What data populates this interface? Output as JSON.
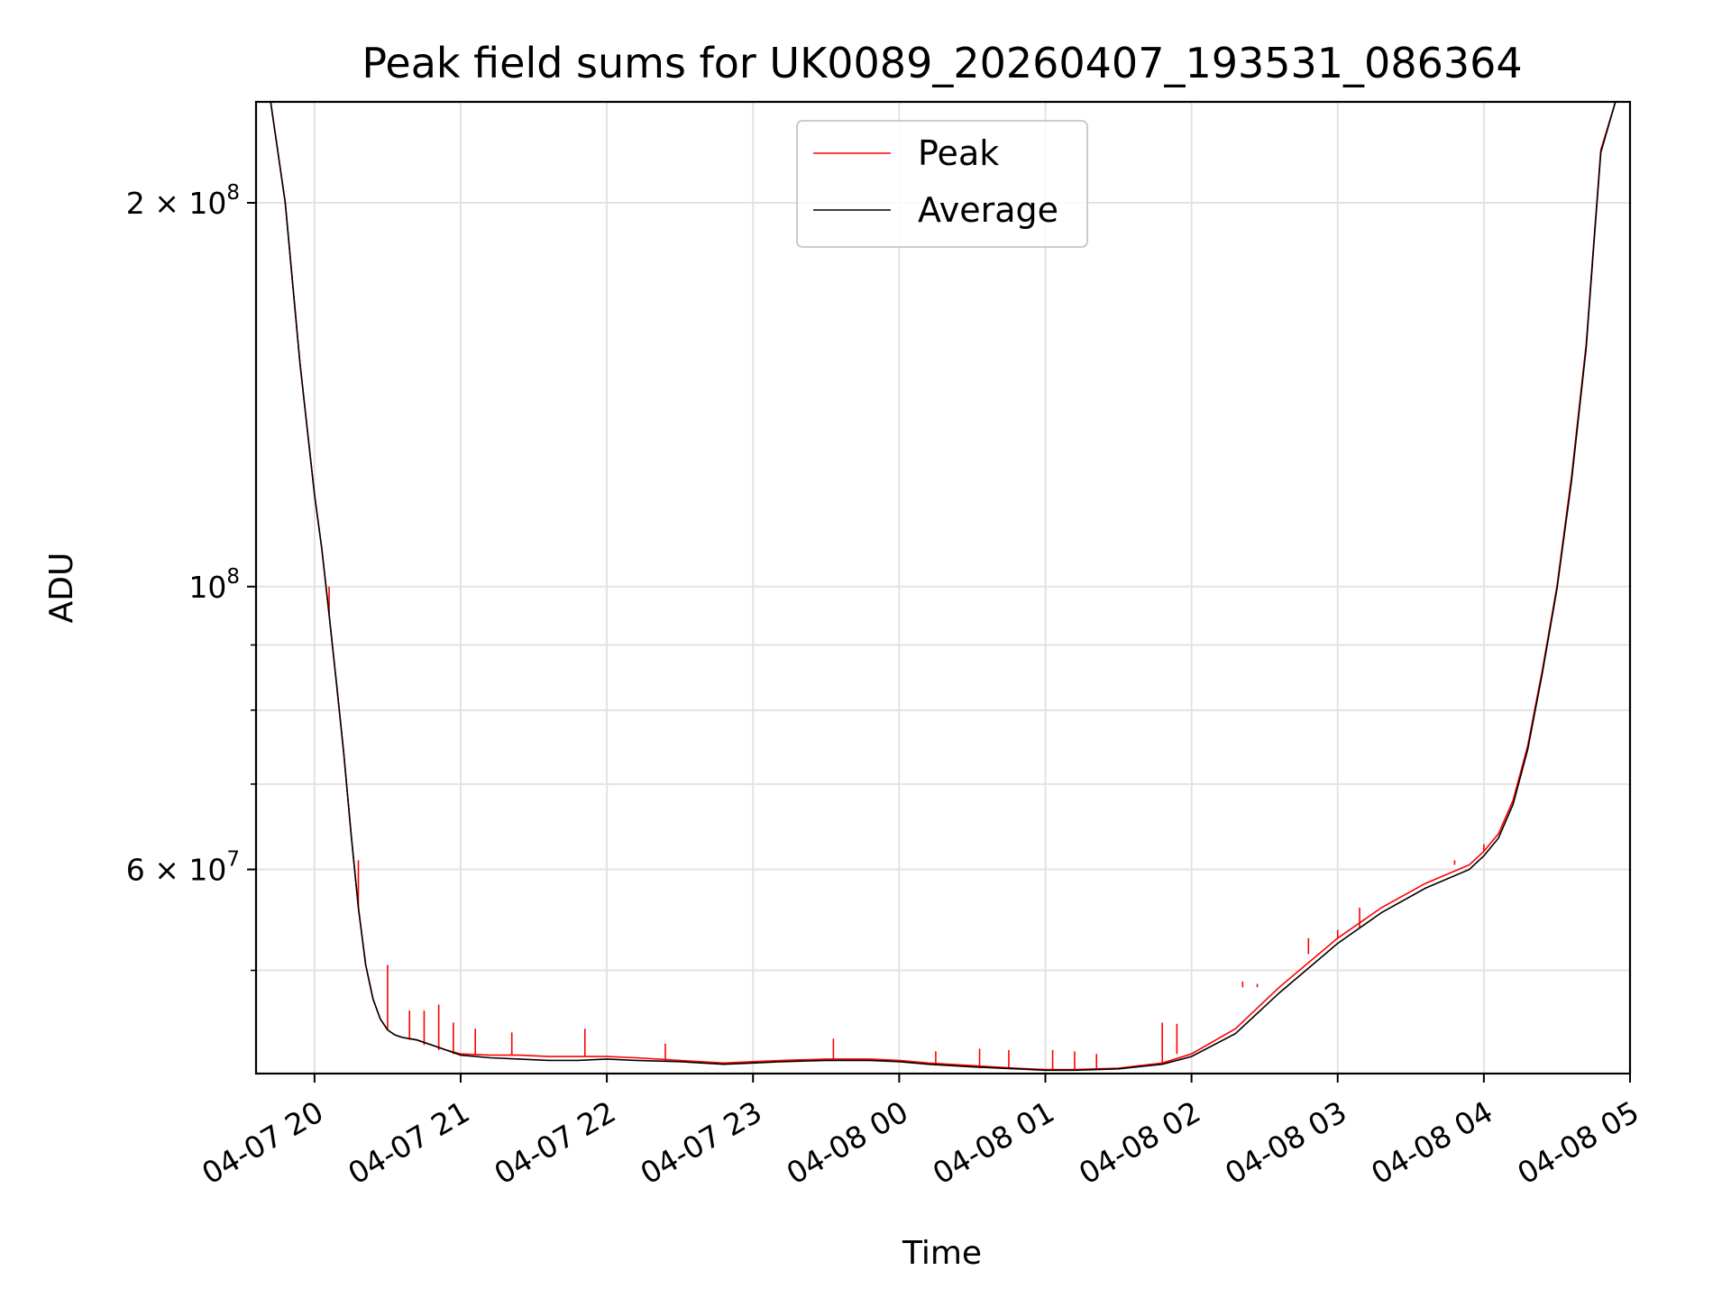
{
  "chart_data": {
    "type": "line",
    "title": "Peak field sums for UK0089_20260407_193531_086364",
    "xlabel": "Time",
    "ylabel": "ADU",
    "yscale": "log",
    "xlim_hours": [
      -0.4,
      9.0
    ],
    "ylim": [
      41500000,
      240000000
    ],
    "grid": true,
    "legend_position": "upper center",
    "x_ticks": [
      {
        "hour": 0,
        "label": "04-07 20"
      },
      {
        "hour": 1,
        "label": "04-07 21"
      },
      {
        "hour": 2,
        "label": "04-07 22"
      },
      {
        "hour": 3,
        "label": "04-07 23"
      },
      {
        "hour": 4,
        "label": "04-08 00"
      },
      {
        "hour": 5,
        "label": "04-08 01"
      },
      {
        "hour": 6,
        "label": "04-08 02"
      },
      {
        "hour": 7,
        "label": "04-08 03"
      },
      {
        "hour": 8,
        "label": "04-08 04"
      },
      {
        "hour": 9,
        "label": "04-08 05"
      }
    ],
    "y_major_ticks": [
      {
        "value": 200000000,
        "base": "2 × 10",
        "exp": "8"
      },
      {
        "value": 100000000,
        "base": "10",
        "exp": "8"
      },
      {
        "value": 60000000,
        "base": "6 × 10",
        "exp": "7"
      }
    ],
    "y_minor_ticks": [
      50000000,
      70000000,
      80000000,
      90000000
    ],
    "series": [
      {
        "name": "Peak",
        "color": "#ff0000",
        "x_hours": [
          -0.4,
          -0.3,
          -0.2,
          -0.1,
          0.0,
          0.05,
          0.1,
          0.15,
          0.2,
          0.25,
          0.3,
          0.35,
          0.4,
          0.45,
          0.5,
          0.55,
          0.6,
          0.7,
          0.8,
          0.9,
          1.0,
          1.2,
          1.4,
          1.6,
          1.8,
          2.0,
          2.2,
          2.5,
          2.8,
          3.0,
          3.2,
          3.5,
          3.8,
          4.0,
          4.2,
          4.5,
          4.8,
          5.0,
          5.2,
          5.5,
          5.8,
          6.0,
          6.3,
          6.6,
          7.0,
          7.3,
          7.6,
          7.9,
          8.0,
          8.1,
          8.2,
          8.3,
          8.4,
          8.5,
          8.6,
          8.7,
          8.75,
          8.8,
          8.9,
          9.0
        ],
        "values": [
          240000000,
          240000000,
          200000000,
          150000000,
          118000000,
          107000000,
          95000000,
          84000000,
          74000000,
          64000000,
          56000000,
          50500000,
          47500000,
          45800000,
          44900000,
          44500000,
          44300000,
          44100000,
          43700000,
          43300000,
          43000000,
          42900000,
          42900000,
          42800000,
          42800000,
          42800000,
          42700000,
          42500000,
          42300000,
          42400000,
          42500000,
          42600000,
          42600000,
          42500000,
          42300000,
          42100000,
          41900000,
          41800000,
          41800000,
          41900000,
          42300000,
          43000000,
          45000000,
          48500000,
          53000000,
          56000000,
          58500000,
          60500000,
          62000000,
          64000000,
          68000000,
          75000000,
          86000000,
          100000000,
          122000000,
          155000000,
          185000000,
          220000000,
          240000000,
          240000000
        ],
        "spikes": [
          {
            "hour": 0.1,
            "value": 100000000
          },
          {
            "hour": 0.3,
            "value": 61000000
          },
          {
            "hour": 0.5,
            "value": 50500000
          },
          {
            "hour": 0.65,
            "value": 46500000
          },
          {
            "hour": 0.75,
            "value": 46500000
          },
          {
            "hour": 0.85,
            "value": 47000000
          },
          {
            "hour": 0.95,
            "value": 45500000
          },
          {
            "hour": 1.1,
            "value": 45000000
          },
          {
            "hour": 1.35,
            "value": 44700000
          },
          {
            "hour": 1.85,
            "value": 45000000
          },
          {
            "hour": 2.4,
            "value": 43800000
          },
          {
            "hour": 3.55,
            "value": 44200000
          },
          {
            "hour": 4.25,
            "value": 43200000
          },
          {
            "hour": 4.55,
            "value": 43400000
          },
          {
            "hour": 4.75,
            "value": 43300000
          },
          {
            "hour": 5.05,
            "value": 43300000
          },
          {
            "hour": 5.2,
            "value": 43200000
          },
          {
            "hour": 5.35,
            "value": 43000000
          },
          {
            "hour": 5.8,
            "value": 45500000
          },
          {
            "hour": 5.9,
            "value": 45400000
          },
          {
            "hour": 6.35,
            "value": 49000000
          },
          {
            "hour": 6.45,
            "value": 48800000
          },
          {
            "hour": 6.8,
            "value": 51500000
          },
          {
            "hour": 7.0,
            "value": 53800000
          },
          {
            "hour": 7.15,
            "value": 54000000
          },
          {
            "hour": 7.8,
            "value": 61000000
          },
          {
            "hour": 8.0,
            "value": 62800000
          },
          {
            "hour": 8.2,
            "value": 68000000
          }
        ]
      },
      {
        "name": "Average",
        "color": "#000000",
        "x_hours": [
          -0.4,
          -0.3,
          -0.2,
          -0.1,
          0.0,
          0.05,
          0.1,
          0.15,
          0.2,
          0.25,
          0.3,
          0.35,
          0.4,
          0.45,
          0.5,
          0.55,
          0.6,
          0.7,
          0.8,
          0.9,
          1.0,
          1.2,
          1.4,
          1.6,
          1.8,
          2.0,
          2.2,
          2.5,
          2.8,
          3.0,
          3.2,
          3.5,
          3.8,
          4.0,
          4.2,
          4.5,
          4.8,
          5.0,
          5.2,
          5.5,
          5.8,
          6.0,
          6.3,
          6.6,
          7.0,
          7.3,
          7.6,
          7.9,
          8.0,
          8.1,
          8.2,
          8.3,
          8.4,
          8.5,
          8.6,
          8.7,
          8.75,
          8.8,
          8.9,
          9.0
        ],
        "values": [
          240000000,
          240000000,
          200000000,
          150000000,
          118000000,
          107000000,
          95000000,
          84000000,
          74000000,
          64000000,
          56000000,
          50500000,
          47500000,
          45800000,
          44900000,
          44500000,
          44300000,
          44100000,
          43700000,
          43300000,
          42900000,
          42700000,
          42600000,
          42500000,
          42500000,
          42600000,
          42500000,
          42400000,
          42200000,
          42300000,
          42400000,
          42500000,
          42500000,
          42400000,
          42200000,
          42000000,
          41850000,
          41750000,
          41750000,
          41850000,
          42200000,
          42800000,
          44600000,
          48000000,
          52500000,
          55500000,
          58000000,
          60000000,
          61500000,
          63500000,
          67500000,
          74500000,
          85500000,
          99500000,
          121000000,
          154000000,
          184000000,
          219000000,
          240000000,
          240000000
        ]
      }
    ]
  }
}
